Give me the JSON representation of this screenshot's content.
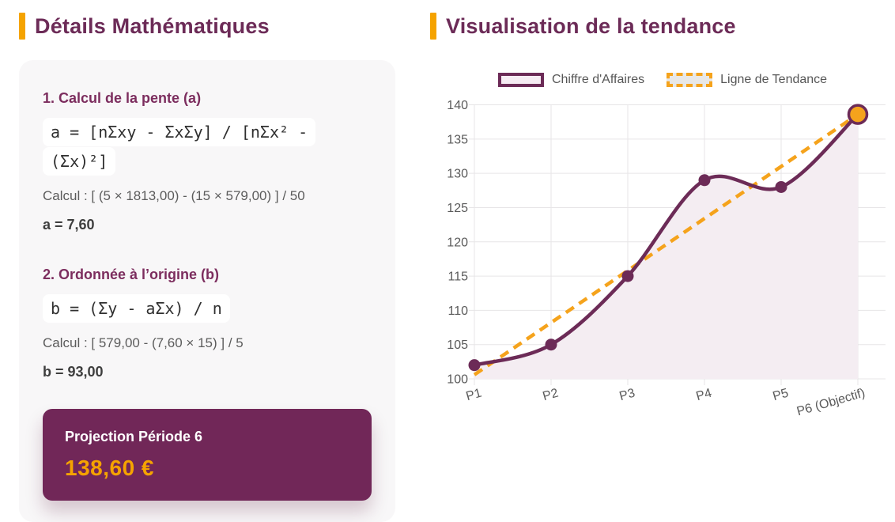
{
  "left_panel": {
    "title": "Détails Mathématiques",
    "section1": {
      "heading": "1. Calcul de la pente (a)",
      "formula": "a = [nΣxy - ΣxΣy] / [nΣx² - (Σx)²]",
      "calc": "Calcul : [ (5 × 1813,00) - (15 × 579,00) ] / 50",
      "result": "a = 7,60"
    },
    "section2": {
      "heading": "2. Ordonnée à l’origine (b)",
      "formula": "b = (Σy - aΣx) / n",
      "calc": "Calcul : [ 579,00 - (7,60 × 15) ] / 5",
      "result": "b = 93,00"
    },
    "projection": {
      "label": "Projection Période 6",
      "value": "138,60 €"
    }
  },
  "right_panel": {
    "title": "Visualisation de la tendance"
  },
  "chart_data": {
    "type": "line",
    "title": "Visualisation de la tendance",
    "categories": [
      "P1",
      "P2",
      "P3",
      "P4",
      "P5",
      "P6 (Objectif)"
    ],
    "series": [
      {
        "name": "Chiffre d'Affaires",
        "values": [
          102,
          105,
          115,
          129,
          128,
          138.6
        ],
        "color": "#6c2b57",
        "fill": "#f4edf2",
        "style": "solid",
        "smooth": true
      },
      {
        "name": "Ligne de Tendance",
        "values": [
          100.6,
          108.2,
          115.8,
          123.4,
          131,
          138.6
        ],
        "color": "#f5a31c",
        "style": "dashed",
        "smooth": false
      }
    ],
    "objective_point": {
      "index": 5,
      "fill": "#f5a31c",
      "stroke": "#6c2b57"
    },
    "ylim": [
      100,
      140
    ],
    "ytick_step": 5,
    "grid": true,
    "legend_position": "top",
    "x_label_rotation": -16,
    "grid_color": "#e7e5e7",
    "axis_text_color": "#5a5a5a"
  },
  "colors": {
    "accent_orange": "#f5a300",
    "plum": "#6c2b57",
    "projection_box": "#712758",
    "card_background": "#f8f7f8"
  }
}
